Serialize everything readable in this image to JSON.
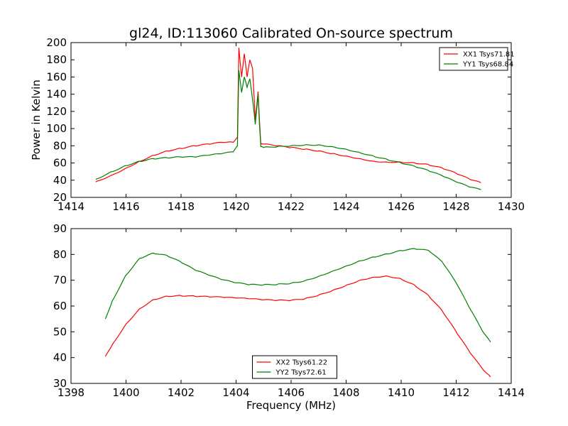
{
  "figure_title": "gl24, ID:113060 Calibrated On-source spectrum",
  "chart_data": [
    {
      "type": "line",
      "title": "gl24, ID:113060 Calibrated On-source spectrum",
      "xlabel": "",
      "ylabel": "Power in Kelvin",
      "xlim": [
        1414,
        1430
      ],
      "ylim": [
        20,
        200
      ],
      "xticks": [
        "1414",
        "1416",
        "1418",
        "1420",
        "1422",
        "1424",
        "1426",
        "1428",
        "1430"
      ],
      "yticks": [
        "20",
        "40",
        "60",
        "80",
        "100",
        "120",
        "140",
        "160",
        "180",
        "200"
      ],
      "grid": false,
      "legend_position": "top-right",
      "series": [
        {
          "name": "XX1 Tsys71.81",
          "color": "#ff0000",
          "x": [
            1414.9,
            1415.5,
            1416.0,
            1416.5,
            1417.0,
            1417.5,
            1418.0,
            1418.5,
            1419.0,
            1419.5,
            1419.9,
            1420.05,
            1420.1,
            1420.2,
            1420.3,
            1420.4,
            1420.5,
            1420.6,
            1420.7,
            1420.8,
            1420.85,
            1420.9,
            1421.0,
            1421.5,
            1422.0,
            1422.5,
            1423.0,
            1423.5,
            1424.0,
            1424.5,
            1425.0,
            1425.5,
            1426.0,
            1426.5,
            1427.0,
            1427.5,
            1428.0,
            1428.5,
            1428.9
          ],
          "y": [
            38,
            46,
            54,
            62,
            69,
            74,
            77,
            80,
            82,
            84,
            84,
            90,
            194,
            160,
            187,
            160,
            180,
            170,
            110,
            143,
            110,
            82,
            82,
            80,
            78,
            76,
            74,
            71,
            68,
            65,
            62,
            61,
            61,
            60,
            58,
            54,
            48,
            41,
            37
          ]
        },
        {
          "name": "YY1 Tsys68.84",
          "color": "#008000",
          "x": [
            1414.9,
            1415.5,
            1416.0,
            1416.5,
            1417.0,
            1417.5,
            1418.0,
            1418.5,
            1419.0,
            1419.5,
            1419.9,
            1420.05,
            1420.1,
            1420.2,
            1420.3,
            1420.4,
            1420.5,
            1420.6,
            1420.7,
            1420.8,
            1420.85,
            1420.9,
            1421.0,
            1421.5,
            1422.0,
            1422.5,
            1423.0,
            1423.5,
            1424.0,
            1424.5,
            1425.0,
            1425.5,
            1426.0,
            1426.5,
            1427.0,
            1427.5,
            1428.0,
            1428.5,
            1428.9
          ],
          "y": [
            41,
            50,
            57,
            62,
            65,
            66,
            67,
            67,
            69,
            71,
            73,
            80,
            168,
            142,
            160,
            148,
            158,
            134,
            105,
            140,
            105,
            79,
            78,
            79,
            80,
            81,
            81,
            79,
            76,
            72,
            68,
            64,
            60,
            56,
            51,
            45,
            38,
            32,
            29
          ]
        }
      ]
    },
    {
      "type": "line",
      "title": "",
      "xlabel": "Frequency (MHz)",
      "ylabel": "",
      "xlim": [
        1398,
        1414
      ],
      "ylim": [
        30,
        90
      ],
      "xticks": [
        "1398",
        "1400",
        "1402",
        "1404",
        "1406",
        "1408",
        "1410",
        "1412",
        "1414"
      ],
      "yticks": [
        "30",
        "40",
        "50",
        "60",
        "70",
        "80",
        "90"
      ],
      "grid": false,
      "legend_position": "bottom-center",
      "series": [
        {
          "name": "XX2 Tsys61.22",
          "color": "#ff0000",
          "x": [
            1399.25,
            1399.5,
            1400.0,
            1400.5,
            1401.0,
            1401.5,
            1402.0,
            1402.5,
            1403.0,
            1403.5,
            1404.0,
            1404.5,
            1405.0,
            1405.5,
            1406.0,
            1406.5,
            1407.0,
            1407.5,
            1408.0,
            1408.5,
            1409.0,
            1409.5,
            1410.0,
            1410.5,
            1411.0,
            1411.5,
            1412.0,
            1412.5,
            1413.0,
            1413.25
          ],
          "y": [
            40.5,
            45,
            53,
            59,
            62.5,
            63.8,
            64,
            63.8,
            63.6,
            63.4,
            63.1,
            62.8,
            62.4,
            62.2,
            62.2,
            62.8,
            64.2,
            66,
            68,
            70,
            71.2,
            71.6,
            70.5,
            68,
            64,
            58,
            50,
            42,
            35,
            32.5
          ]
        },
        {
          "name": "YY2 Tsys72.61",
          "color": "#008000",
          "x": [
            1399.25,
            1399.5,
            1400.0,
            1400.5,
            1401.0,
            1401.5,
            1402.0,
            1402.5,
            1403.0,
            1403.5,
            1404.0,
            1404.5,
            1405.0,
            1405.5,
            1406.0,
            1406.5,
            1407.0,
            1407.5,
            1408.0,
            1408.5,
            1409.0,
            1409.5,
            1410.0,
            1410.5,
            1411.0,
            1411.5,
            1412.0,
            1412.5,
            1413.0,
            1413.25
          ],
          "y": [
            55,
            62,
            72,
            78.5,
            80.5,
            79.5,
            77,
            74,
            72,
            70.2,
            69,
            68.3,
            68.2,
            68.4,
            68.8,
            69.8,
            71.5,
            73.5,
            75.5,
            77.5,
            79,
            80.2,
            81.5,
            82.2,
            81.5,
            77,
            69,
            59,
            49.5,
            46
          ]
        }
      ]
    }
  ]
}
